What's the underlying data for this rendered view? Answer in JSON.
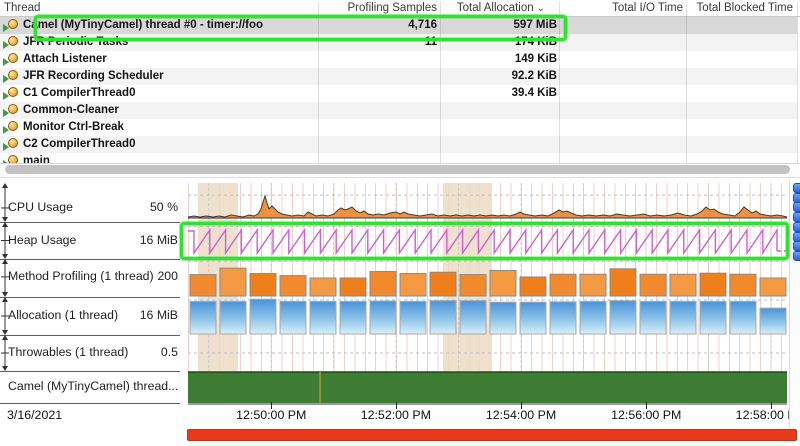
{
  "table": {
    "columns": [
      {
        "label": "Thread",
        "align": "left"
      },
      {
        "label": "Profiling Samples",
        "align": "right"
      },
      {
        "label": "Total Allocation",
        "align": "right",
        "sorted": true
      },
      {
        "label": "Total I/O Time",
        "align": "right"
      },
      {
        "label": "Total Blocked Time",
        "align": "right"
      }
    ],
    "sort_glyph": "⌄",
    "rows": [
      {
        "name": "Camel (MyTinyCamel) thread #0 - timer://foo",
        "samples": "4,716",
        "alloc": "597 MiB",
        "io": "",
        "blocked": "",
        "selected": true,
        "annotated": true
      },
      {
        "name": "JFR Periodic Tasks",
        "samples": "11",
        "alloc": "174 KiB",
        "io": "",
        "blocked": ""
      },
      {
        "name": "Attach Listener",
        "samples": "",
        "alloc": "149 KiB",
        "io": "",
        "blocked": ""
      },
      {
        "name": "JFR Recording Scheduler",
        "samples": "",
        "alloc": "92.2 KiB",
        "io": "",
        "blocked": ""
      },
      {
        "name": "C1 CompilerThread0",
        "samples": "",
        "alloc": "39.4 KiB",
        "io": "",
        "blocked": ""
      },
      {
        "name": "Common-Cleaner",
        "samples": "",
        "alloc": "",
        "io": "",
        "blocked": ""
      },
      {
        "name": "Monitor Ctrl-Break",
        "samples": "",
        "alloc": "",
        "io": "",
        "blocked": ""
      },
      {
        "name": "C2 CompilerThread0",
        "samples": "",
        "alloc": "",
        "io": "",
        "blocked": ""
      },
      {
        "name": "main",
        "samples": "",
        "alloc": "",
        "io": "",
        "blocked": "",
        "partial": true
      }
    ]
  },
  "timeline": {
    "rows": [
      {
        "label": "CPU Usage",
        "scale": "50 %",
        "type": "cpu"
      },
      {
        "label": "Heap Usage",
        "scale": "16 MiB",
        "type": "sawtooth",
        "annotated": true
      },
      {
        "label": "Method Profiling (1 thread)",
        "scale": "200",
        "type": "bars-orange"
      },
      {
        "label": "Allocation (1 thread)",
        "scale": "16 MiB",
        "type": "bars-blue"
      },
      {
        "label": "Throwables (1 thread)",
        "scale": "0.5",
        "type": "empty"
      },
      {
        "label": "Camel (MyTinyCamel) thread...",
        "scale": "",
        "type": "band"
      }
    ],
    "date_label": "3/16/2021",
    "time_ticks": [
      {
        "label": "12:50:00 PM",
        "f": 0.139
      },
      {
        "label": "12:52:00 PM",
        "f": 0.347
      },
      {
        "label": "12:54:00 PM",
        "f": 0.556
      },
      {
        "label": "12:56:00 PM",
        "f": 0.765
      },
      {
        "label": "12:58:00 PM",
        "f": 0.973
      }
    ],
    "bands": [
      {
        "f": 0.017,
        "w": 0.067
      },
      {
        "f": 0.426,
        "w": 0.082
      }
    ]
  },
  "chart_data": {
    "type": "timeline-multirow",
    "x_axis": {
      "date": "3/16/2021",
      "tick_labels": [
        "12:50:00 PM",
        "12:52:00 PM",
        "12:54:00 PM",
        "12:56:00 PM",
        "12:58:00 PM"
      ],
      "interval": "2 min"
    },
    "cpu_usage": {
      "type": "area",
      "y_tick": "50 %",
      "points": [
        [
          0,
          1
        ],
        [
          6,
          2
        ],
        [
          12,
          1
        ],
        [
          18,
          2
        ],
        [
          25,
          1
        ],
        [
          31,
          2
        ],
        [
          37,
          1
        ],
        [
          43,
          3
        ],
        [
          49,
          2
        ],
        [
          55,
          1
        ],
        [
          61,
          3
        ],
        [
          66,
          2
        ],
        [
          70,
          4
        ],
        [
          73,
          9
        ],
        [
          75,
          16
        ],
        [
          77,
          22
        ],
        [
          79,
          15
        ],
        [
          81,
          9
        ],
        [
          84,
          12
        ],
        [
          87,
          9
        ],
        [
          90,
          6
        ],
        [
          94,
          4
        ],
        [
          99,
          3
        ],
        [
          104,
          2
        ],
        [
          110,
          3
        ],
        [
          116,
          2
        ],
        [
          120,
          6
        ],
        [
          124,
          4
        ],
        [
          128,
          2
        ],
        [
          134,
          3
        ],
        [
          140,
          2
        ],
        [
          146,
          4
        ],
        [
          150,
          8
        ],
        [
          153,
          10
        ],
        [
          157,
          8
        ],
        [
          160,
          9
        ],
        [
          164,
          11
        ],
        [
          168,
          7
        ],
        [
          172,
          5
        ],
        [
          176,
          7
        ],
        [
          180,
          4
        ],
        [
          185,
          3
        ],
        [
          190,
          4
        ],
        [
          196,
          3
        ],
        [
          202,
          5
        ],
        [
          208,
          6
        ],
        [
          212,
          4
        ],
        [
          216,
          6
        ],
        [
          220,
          4
        ],
        [
          226,
          3
        ],
        [
          232,
          2
        ],
        [
          238,
          3
        ],
        [
          244,
          4
        ],
        [
          250,
          2
        ],
        [
          256,
          3
        ],
        [
          262,
          2
        ],
        [
          268,
          3
        ],
        [
          274,
          2
        ],
        [
          280,
          3
        ],
        [
          286,
          2
        ],
        [
          292,
          3
        ],
        [
          298,
          2
        ],
        [
          304,
          3
        ],
        [
          310,
          2
        ],
        [
          316,
          3
        ],
        [
          322,
          2
        ],
        [
          328,
          4
        ],
        [
          332,
          6
        ],
        [
          336,
          4
        ],
        [
          341,
          3
        ],
        [
          347,
          2
        ],
        [
          354,
          3
        ],
        [
          360,
          2
        ],
        [
          366,
          5
        ],
        [
          371,
          8
        ],
        [
          375,
          6
        ],
        [
          379,
          7
        ],
        [
          383,
          5
        ],
        [
          388,
          3
        ],
        [
          394,
          2
        ],
        [
          401,
          3
        ],
        [
          408,
          2
        ],
        [
          415,
          3
        ],
        [
          422,
          2
        ],
        [
          429,
          4
        ],
        [
          435,
          3
        ],
        [
          442,
          2
        ],
        [
          449,
          3
        ],
        [
          456,
          4
        ],
        [
          462,
          2
        ],
        [
          469,
          3
        ],
        [
          476,
          2
        ],
        [
          483,
          3
        ],
        [
          490,
          5
        ],
        [
          496,
          3
        ],
        [
          503,
          2
        ],
        [
          509,
          4
        ],
        [
          514,
          7
        ],
        [
          518,
          11
        ],
        [
          522,
          8
        ],
        [
          526,
          9
        ],
        [
          530,
          6
        ],
        [
          535,
          4
        ],
        [
          541,
          3
        ],
        [
          547,
          2
        ],
        [
          552,
          6
        ],
        [
          556,
          11
        ],
        [
          560,
          8
        ],
        [
          564,
          5
        ],
        [
          568,
          7
        ],
        [
          572,
          4
        ],
        [
          577,
          3
        ],
        [
          583,
          2
        ],
        [
          589,
          3
        ],
        [
          595,
          2
        ],
        [
          599,
          1
        ]
      ]
    },
    "heap_usage": {
      "type": "sawtooth",
      "y_tick": "16 MiB",
      "teeth": 38,
      "dashed_tail": true
    },
    "method_profiling": {
      "type": "bar",
      "y_tick": "200",
      "values": [
        0.63,
        0.82,
        0.66,
        0.6,
        0.53,
        0.53,
        0.72,
        0.66,
        0.7,
        0.63,
        0.75,
        0.56,
        0.64,
        0.64,
        0.8,
        0.64,
        0.64,
        0.67,
        0.64,
        0.53
      ]
    },
    "allocation": {
      "type": "bar",
      "y_tick": "16 MiB",
      "values": [
        0.88,
        0.88,
        0.94,
        0.88,
        0.88,
        0.88,
        0.89,
        0.88,
        0.9,
        0.9,
        0.86,
        0.86,
        0.87,
        0.88,
        0.9,
        0.88,
        0.88,
        0.88,
        0.88,
        0.7
      ]
    },
    "throwables": {
      "type": "empty",
      "y_tick": "0.5",
      "values": []
    },
    "camel_thread_band": {
      "type": "state-band",
      "state": "running",
      "marker_f": 0.2204
    }
  },
  "right_strip": {
    "icon_count": 8,
    "icon_name": "blue-knob-icon"
  },
  "colors": {
    "annotation_green": "#2ee52e",
    "selection_gray": "#d8d8d8",
    "cpu_fill": "#eb9340",
    "sawtooth_pink": "#cf5fd0",
    "bar_orange": "#f18a2c",
    "bar_blue_top": "#4a94d8",
    "bar_blue_bottom": "#d8f0fa",
    "band_green": "#3e7b33",
    "band_marker_yellow": "#b09a30",
    "scrollbar_red": "#e8391a",
    "knob_blue": "#2d63d8",
    "grid_band_beige": "#ecdcc6"
  }
}
